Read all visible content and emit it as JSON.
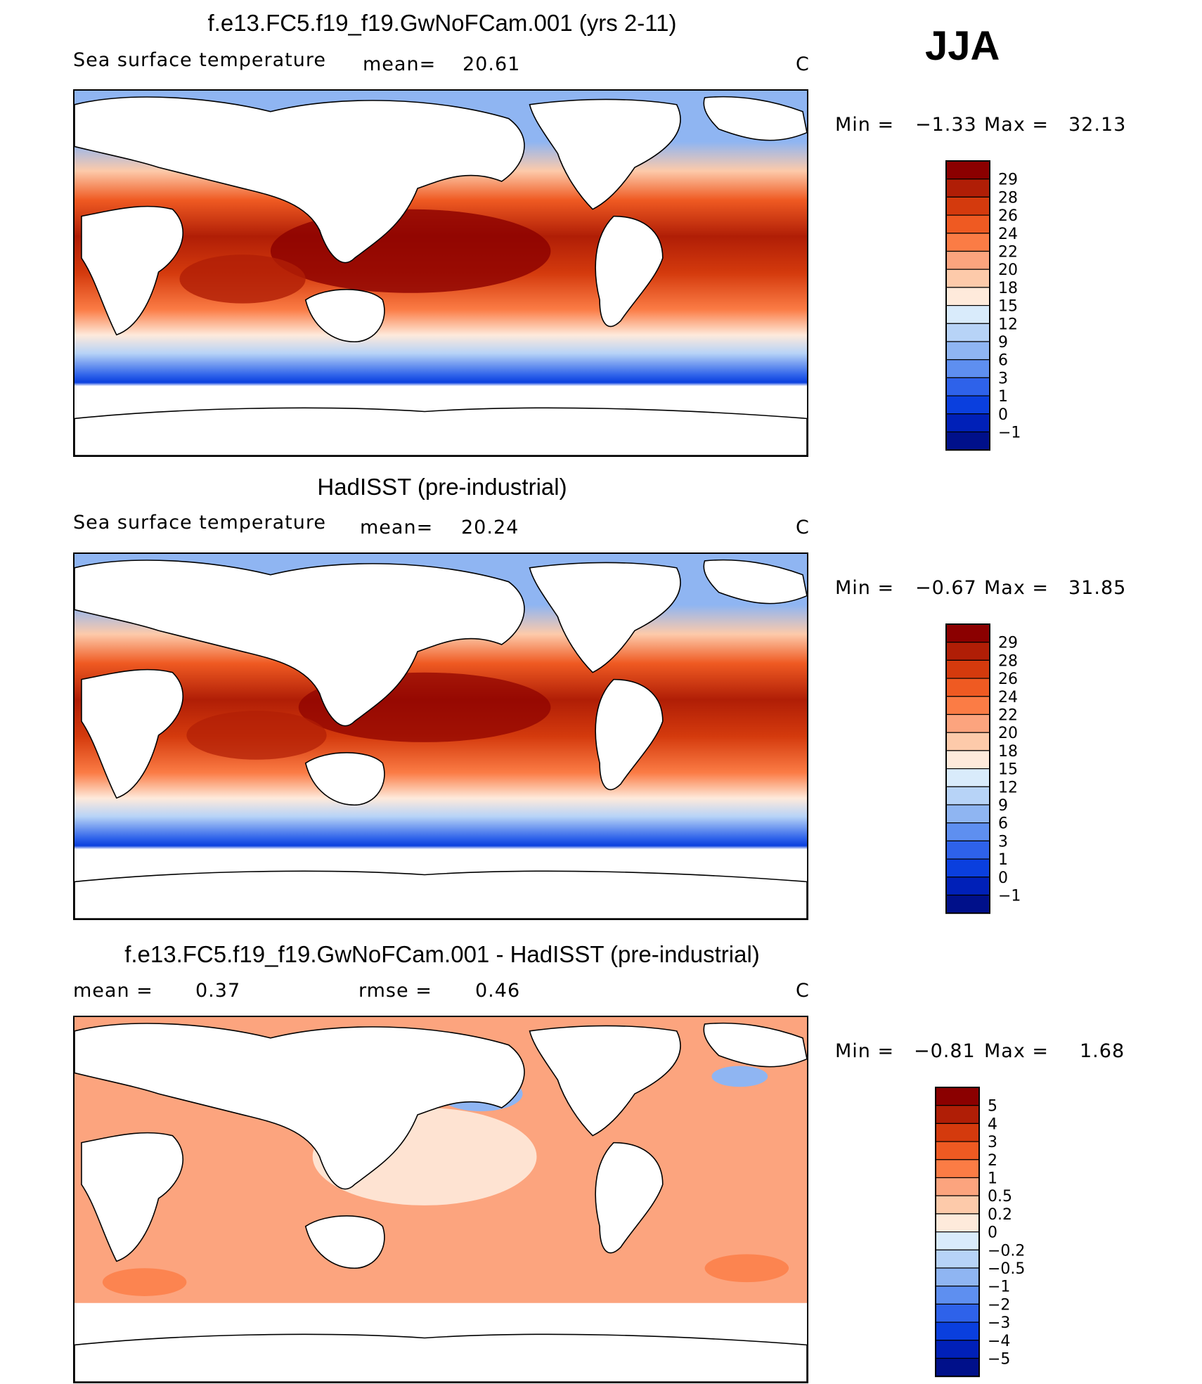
{
  "season": "JJA",
  "panels": [
    {
      "id": "model",
      "title": "f.e13.FC5.f19_f19.GwNoFCam.001 (yrs 2-11)",
      "variable": "Sea surface temperature",
      "stat1_label": "mean=",
      "stat1_value": "20.61",
      "unit": "C",
      "min_label": "Min =",
      "min_value": "−1.33",
      "max_label": "Max =",
      "max_value": "32.13",
      "colorbar_labels": [
        "29",
        "28",
        "26",
        "24",
        "22",
        "20",
        "18",
        "15",
        "12",
        "9",
        "6",
        "3",
        "1",
        "0",
        "−1"
      ],
      "colors": [
        "#8b0000",
        "#b01e06",
        "#d43a0d",
        "#ef5a22",
        "#fb7c45",
        "#fca47e",
        "#fdcaaa",
        "#feeadb",
        "#d9ebfb",
        "#b7d3f7",
        "#8fb5f2",
        "#5e8ff0",
        "#2e62ea",
        "#0a3fde",
        "#0020b8",
        "#00108a"
      ]
    },
    {
      "id": "obs",
      "title": "HadISST (pre-industrial)",
      "variable": "Sea surface temperature",
      "stat1_label": "mean=",
      "stat1_value": "20.24",
      "unit": "C",
      "min_label": "Min =",
      "min_value": "−0.67",
      "max_label": "Max =",
      "max_value": "31.85",
      "colorbar_labels": [
        "29",
        "28",
        "26",
        "24",
        "22",
        "20",
        "18",
        "15",
        "12",
        "9",
        "6",
        "3",
        "1",
        "0",
        "−1"
      ],
      "colors": [
        "#8b0000",
        "#b01e06",
        "#d43a0d",
        "#ef5a22",
        "#fb7c45",
        "#fca47e",
        "#fdcaaa",
        "#feeadb",
        "#d9ebfb",
        "#b7d3f7",
        "#8fb5f2",
        "#5e8ff0",
        "#2e62ea",
        "#0a3fde",
        "#0020b8",
        "#00108a"
      ]
    },
    {
      "id": "diff",
      "title": "f.e13.FC5.f19_f19.GwNoFCam.001 - HadISST (pre-industrial)",
      "stat1_label": "mean =",
      "stat1_value": "0.37",
      "stat2_label": "rmse =",
      "stat2_value": "0.46",
      "unit": "C",
      "min_label": "Min =",
      "min_value": "−0.81",
      "max_label": "Max =",
      "max_value": "1.68",
      "colorbar_labels": [
        "5",
        "4",
        "3",
        "2",
        "1",
        "0.5",
        "0.2",
        "0",
        "−0.2",
        "−0.5",
        "−1",
        "−2",
        "−3",
        "−4",
        "−5"
      ],
      "colors": [
        "#8b0000",
        "#b01e06",
        "#d43a0d",
        "#ef5a22",
        "#fb7c45",
        "#fca47e",
        "#fdcaaa",
        "#feeadb",
        "#d9ebfb",
        "#b7d3f7",
        "#8fb5f2",
        "#5e8ff0",
        "#2e62ea",
        "#0a3fde",
        "#0020b8",
        "#00108a"
      ]
    }
  ]
}
